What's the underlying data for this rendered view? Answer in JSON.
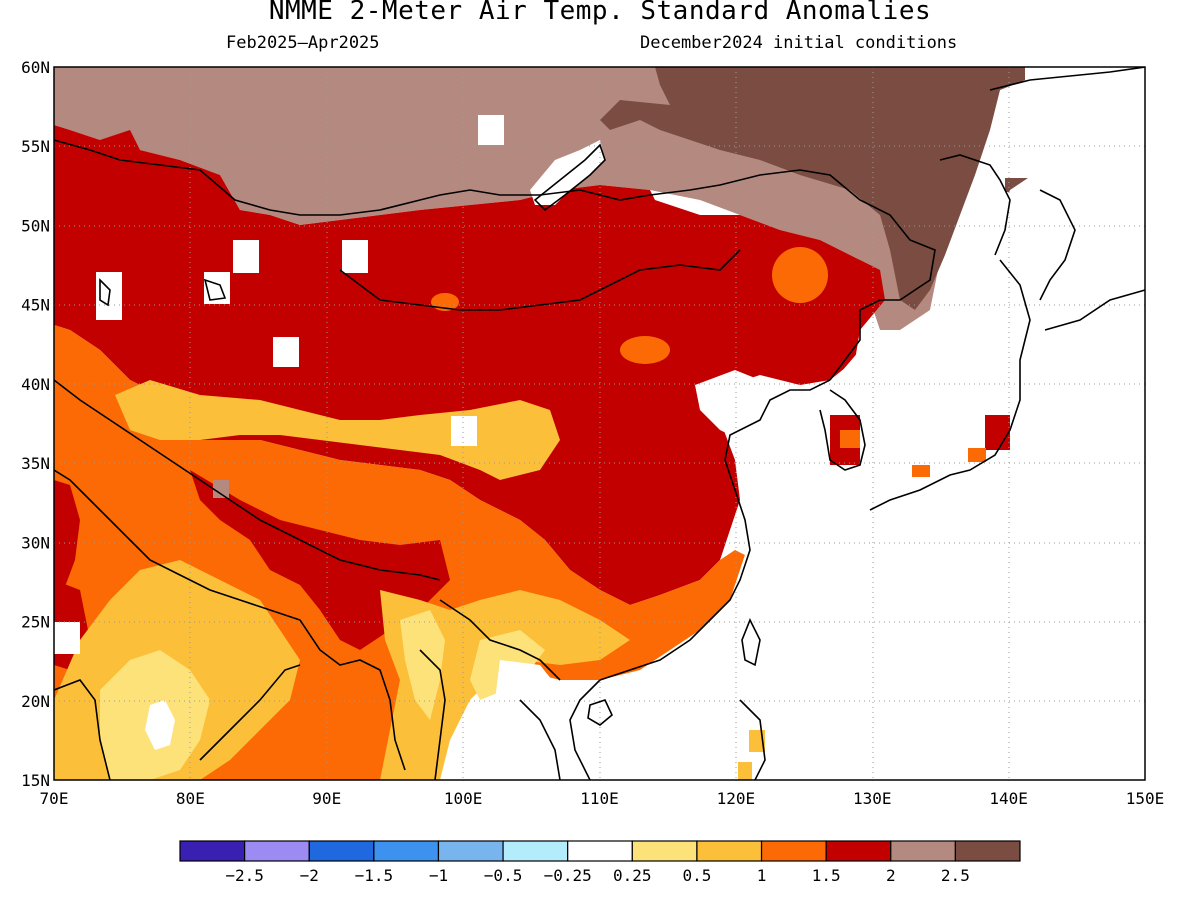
{
  "header": {
    "title": "NMME 2-Meter Air Temp. Standard Anomalies",
    "period": "Feb2025–Apr2025",
    "initial_conditions": "December2024 initial conditions"
  },
  "map": {
    "region": "East Asia",
    "lon_range": [
      70,
      150
    ],
    "lat_range": [
      15,
      60
    ],
    "lon_ticks": [
      "70E",
      "80E",
      "90E",
      "100E",
      "110E",
      "120E",
      "130E",
      "140E",
      "150E"
    ],
    "lat_ticks": [
      "15N",
      "20N",
      "25N",
      "30N",
      "35N",
      "40N",
      "45N",
      "50N",
      "55N",
      "60N"
    ],
    "gridlines": "dotted"
  },
  "colorbar": {
    "colors": [
      "#3a1fb3",
      "#9b8bf2",
      "#1f68e0",
      "#3d92f0",
      "#78b5ef",
      "#b3ecfa",
      "#ffffff",
      "#fde27a",
      "#fbbf3a",
      "#fb6a04",
      "#c30000",
      "#b48a80",
      "#7b4d42"
    ],
    "labels": [
      "−2.5",
      "−2",
      "−1.5",
      "−1",
      "−0.5",
      "−0.25",
      "0.25",
      "0.5",
      "1",
      "1.5",
      "2",
      "2.5"
    ]
  },
  "legend_colors": {
    "ocean_land_neutral": "#ffffff",
    "coast": "#000000"
  }
}
